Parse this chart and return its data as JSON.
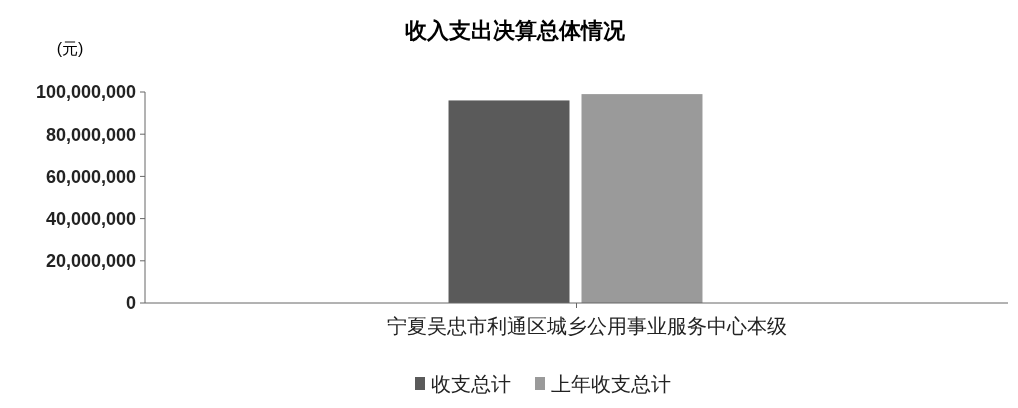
{
  "chart_data": {
    "type": "bar",
    "title": "收入支出决算总体情况",
    "ylabel": "(元)",
    "categories": [
      "宁夏吴忠市利通区城乡公用事业服务中心本级"
    ],
    "series": [
      {
        "name": "收支总计",
        "color": "#5a5a5a",
        "values": [
          96000000
        ]
      },
      {
        "name": "上年收支总计",
        "color": "#9a9a9a",
        "values": [
          99000000
        ]
      }
    ],
    "ylim": [
      0,
      100000000
    ],
    "yticks": [
      {
        "value": 0,
        "label": "0"
      },
      {
        "value": 20000000,
        "label": "20,000,000"
      },
      {
        "value": 40000000,
        "label": "40,000,000"
      },
      {
        "value": 60000000,
        "label": "60,000,000"
      },
      {
        "value": 80000000,
        "label": "80,000,000"
      },
      {
        "value": 100000000,
        "label": "100,000,000"
      }
    ],
    "grid": false,
    "legend": "bottom"
  }
}
